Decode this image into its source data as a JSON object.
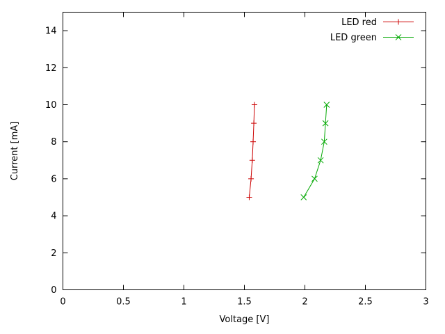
{
  "figure": {
    "background": "#ffffff",
    "axis_color": "#000000",
    "text_color": "#000000"
  },
  "chart_data": {
    "type": "line",
    "title": "",
    "xlabel": "Voltage [V]",
    "ylabel": "Current [mA]",
    "xlim": [
      0,
      3
    ],
    "ylim": [
      0,
      15
    ],
    "grid": false,
    "legend_position": "top-right-inside",
    "xticks": {
      "values": [
        0,
        0.5,
        1,
        1.5,
        2,
        2.5,
        3
      ],
      "labels": [
        "0",
        "0.5",
        "1",
        "1.5",
        "2",
        "2.5",
        "3"
      ]
    },
    "yticks": {
      "values": [
        0,
        2,
        4,
        6,
        8,
        10,
        12,
        14
      ],
      "labels": [
        "0",
        "2",
        "4",
        "6",
        "8",
        "10",
        "12",
        "14"
      ]
    },
    "series": [
      {
        "name": "LED red",
        "color": "#cc0000",
        "marker": "plus",
        "x": [
          1.54,
          1.555,
          1.565,
          1.572,
          1.578,
          1.583
        ],
        "y": [
          5,
          6,
          7,
          8,
          9,
          10
        ]
      },
      {
        "name": "LED green",
        "color": "#00a800",
        "marker": "cross",
        "x": [
          1.99,
          2.08,
          2.13,
          2.16,
          2.17,
          2.18
        ],
        "y": [
          5,
          6,
          7,
          8,
          9,
          10
        ]
      }
    ]
  }
}
